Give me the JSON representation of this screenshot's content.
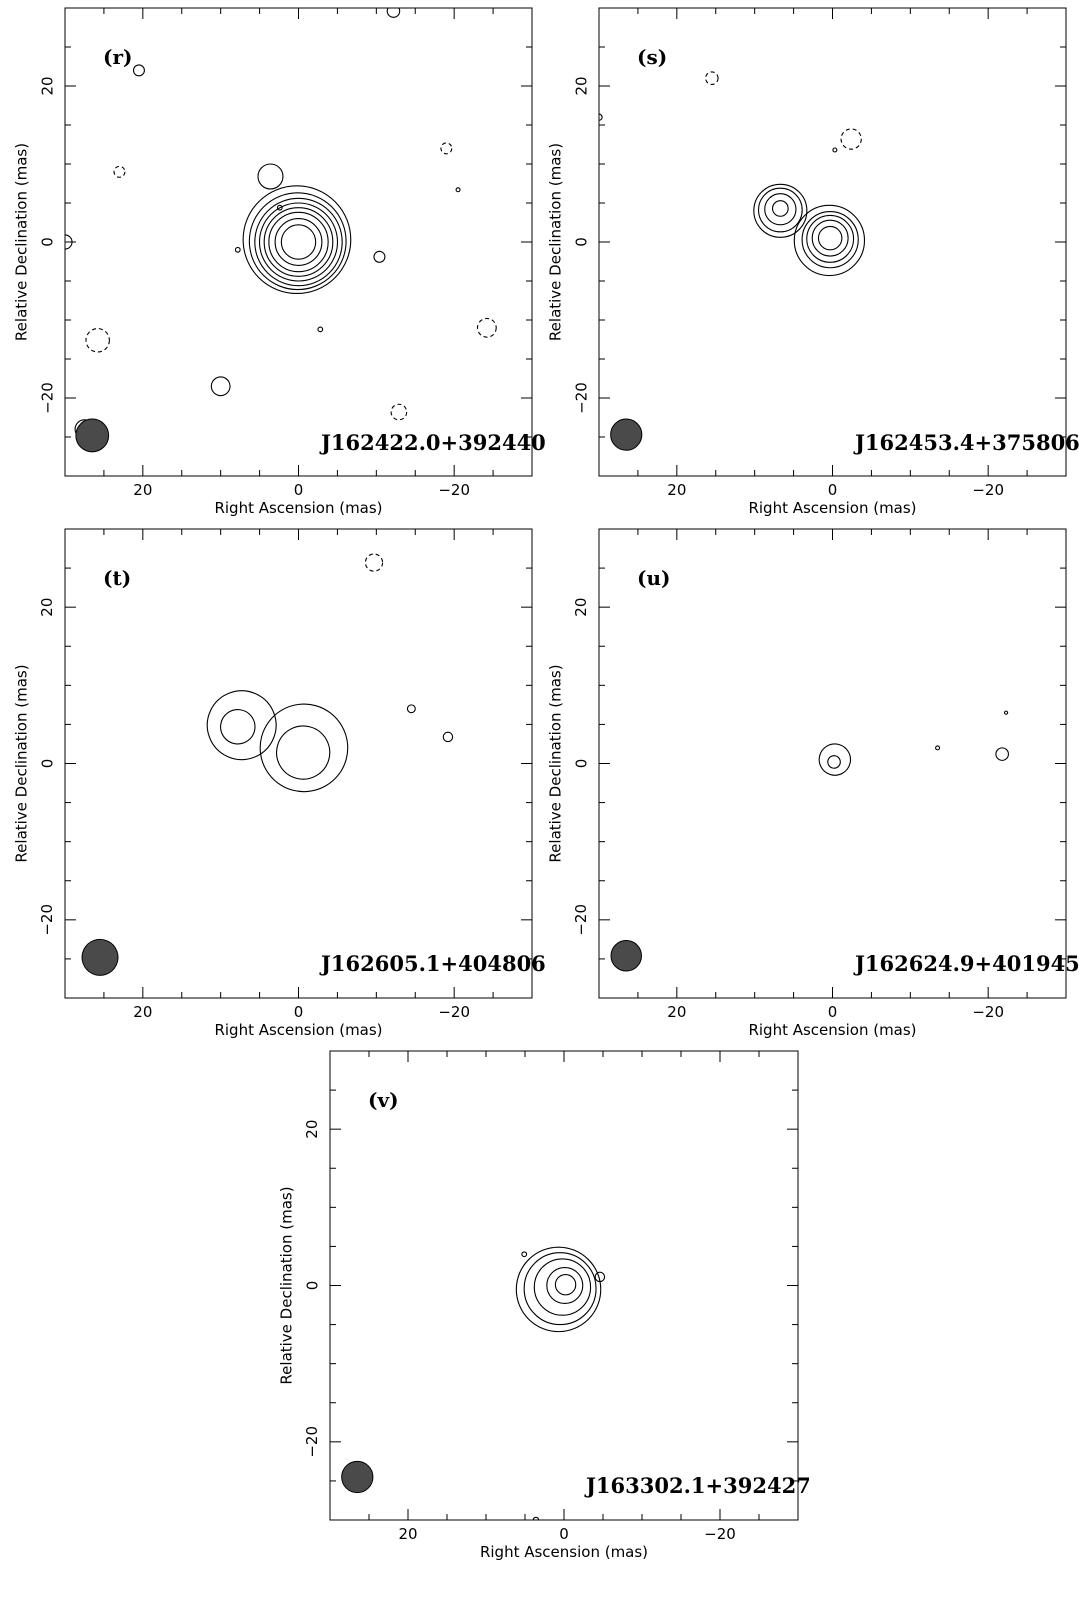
{
  "chart_data": [
    {
      "type": "contour",
      "panel_label": "(r)",
      "source_name": "J162422.0+392440",
      "xlabel": "Right Ascension  (mas)",
      "ylabel": "Relative Declination  (mas)",
      "xlim": [
        30,
        -30
      ],
      "ylim": [
        -30,
        30
      ],
      "x_ticks": [
        "20",
        "0",
        "−20"
      ],
      "y_ticks": [
        "20",
        "0",
        "−20"
      ],
      "contours": [
        {
          "x": 0,
          "y": 0,
          "rx": 1.0,
          "ry": 2.2
        },
        {
          "x": 0,
          "y": 0,
          "rx": 1.3,
          "ry": 3.0
        },
        {
          "x": 0,
          "y": 0,
          "rx": 1.6,
          "ry": 3.8
        },
        {
          "x": 0,
          "y": 0,
          "rx": 1.8,
          "ry": 4.4
        },
        {
          "x": 0,
          "y": 0,
          "rx": 2.0,
          "ry": 5.0
        },
        {
          "x": 0,
          "y": 0,
          "rx": 2.2,
          "ry": 5.6
        },
        {
          "x": 0.1,
          "y": 0.1,
          "rx": 2.4,
          "ry": 6.2
        },
        {
          "x": 0.2,
          "y": 0.3,
          "rx": 2.6,
          "ry": 6.9
        }
      ],
      "components": [
        {
          "x": 3.6,
          "y": 8.4,
          "rx": 0.45,
          "ry": 1.6
        },
        {
          "x": 10,
          "y": -18.5,
          "rx": 0.5,
          "ry": 1.2
        },
        {
          "x": 20.5,
          "y": 22,
          "rx": 0.22,
          "ry": 0.7
        },
        {
          "x": -10.4,
          "y": -1.9,
          "rx": 0.18,
          "ry": 0.7
        },
        {
          "x": 27.5,
          "y": -24,
          "rx": 0.45,
          "ry": 1.2
        },
        {
          "x": 30,
          "y": 0,
          "rx": 0.6,
          "ry": 0.9
        },
        {
          "x": 7.8,
          "y": -1,
          "rx": 0.15,
          "ry": 0.3
        },
        {
          "x": 2.4,
          "y": 4.4,
          "rx": 0.15,
          "ry": 0.3
        },
        {
          "x": -20.5,
          "y": 6.7,
          "rx": 0.1,
          "ry": 0.25
        },
        {
          "x": -2.8,
          "y": -11.2,
          "rx": 0.15,
          "ry": 0.3
        },
        {
          "x": -12.2,
          "y": 29.6,
          "rx": 0.5,
          "ry": 0.8
        }
      ],
      "negative_contours": [
        {
          "x": 23,
          "y": 9,
          "rx": 0.35,
          "ry": 0.7
        },
        {
          "x": -19,
          "y": 12,
          "rx": 0.35,
          "ry": 0.7
        },
        {
          "x": 25.8,
          "y": -12.6,
          "rx": 0.55,
          "ry": 1.5
        },
        {
          "x": -24.2,
          "y": -11,
          "rx": 0.45,
          "ry": 1.2
        },
        {
          "x": -12.9,
          "y": -21.8,
          "rx": 0.45,
          "ry": 1.0
        }
      ],
      "beam": {
        "x": 26.5,
        "y": -24.8,
        "major": 4.2,
        "minor": 1.4,
        "pa": 0
      }
    },
    {
      "type": "contour",
      "panel_label": "(s)",
      "source_name": "J162453.4+375806",
      "xlabel": "Right Ascension  (mas)",
      "ylabel": "Relative Declination  (mas)",
      "xlim": [
        30,
        -30
      ],
      "ylim": [
        -30,
        30
      ],
      "x_ticks": [
        "20",
        "0",
        "−20"
      ],
      "y_ticks": [
        "20",
        "0",
        "−20"
      ],
      "contours": [
        {
          "x": 0.3,
          "y": 0.5,
          "rx": 1.4,
          "ry": 1.5
        },
        {
          "x": 0.3,
          "y": 0.5,
          "rx": 2.0,
          "ry": 2.3
        },
        {
          "x": 0.3,
          "y": 0.4,
          "rx": 2.4,
          "ry": 3.0
        },
        {
          "x": 0.3,
          "y": 0.3,
          "rx": 2.7,
          "ry": 3.6
        },
        {
          "x": 0.4,
          "y": 0.2,
          "rx": 3.0,
          "ry": 4.5
        },
        {
          "x": 6.7,
          "y": 4.3,
          "rx": 0.6,
          "ry": 1.0
        },
        {
          "x": 6.7,
          "y": 4.2,
          "rx": 1.0,
          "ry": 2.0
        },
        {
          "x": 6.7,
          "y": 4.1,
          "rx": 1.3,
          "ry": 2.8
        },
        {
          "x": 6.7,
          "y": 4.0,
          "rx": 1.5,
          "ry": 3.4
        }
      ],
      "components": [
        {
          "x": -0.3,
          "y": 11.8,
          "rx": 0.12,
          "ry": 0.25
        },
        {
          "x": 30,
          "y": 16,
          "rx": 0.1,
          "ry": 0.4
        }
      ],
      "negative_contours": [
        {
          "x": 15.5,
          "y": 21,
          "rx": 0.35,
          "ry": 0.8
        },
        {
          "x": -2.4,
          "y": 13.2,
          "rx": 0.4,
          "ry": 1.3
        }
      ],
      "beam": {
        "x": 26.5,
        "y": -24.7,
        "major": 4.0,
        "minor": 1.4,
        "pa": 0
      }
    },
    {
      "type": "contour",
      "panel_label": "(t)",
      "source_name": "J162605.1+404806",
      "xlabel": "Right Ascension  (mas)",
      "ylabel": "Relative Declination  (mas)",
      "xlim": [
        30,
        -30
      ],
      "ylim": [
        -30,
        30
      ],
      "x_ticks": [
        "20",
        "0",
        "−20"
      ],
      "y_ticks": [
        "20",
        "0",
        "−20"
      ],
      "contours": [
        {
          "x": -0.6,
          "y": 1.4,
          "rx": 1.6,
          "ry": 3.4,
          "rot": 15
        },
        {
          "x": -0.7,
          "y": 2.0,
          "rx": 2.9,
          "ry": 5.6,
          "rot": 15
        },
        {
          "x": 7.8,
          "y": 4.7,
          "rx": 1.0,
          "ry": 2.2,
          "rot": 8
        },
        {
          "x": 7.3,
          "y": 4.9,
          "rx": 3.3,
          "ry": 4.4,
          "rot": -20
        }
      ],
      "components": [
        {
          "x": -14.5,
          "y": 7,
          "rx": 0.3,
          "ry": 0.5
        },
        {
          "x": -19.2,
          "y": 3.4,
          "rx": 0.45,
          "ry": 0.6
        }
      ],
      "negative_contours": [
        {
          "x": -9.7,
          "y": 25.7,
          "rx": 1.3,
          "ry": 1.1
        }
      ],
      "beam": {
        "x": 25.5,
        "y": -24.8,
        "major": 4.6,
        "minor": 2.5,
        "pa": 25
      }
    },
    {
      "type": "contour",
      "panel_label": "(u)",
      "source_name": "J162624.9+401945",
      "xlabel": "Right Ascension  (mas)",
      "ylabel": "Relative Declination  (mas)",
      "xlim": [
        30,
        -30
      ],
      "ylim": [
        -30,
        30
      ],
      "x_ticks": [
        "20",
        "0",
        "−20"
      ],
      "y_ticks": [
        "20",
        "0",
        "−20"
      ],
      "contours": [
        {
          "x": -0.2,
          "y": 0.2,
          "rx": 0.35,
          "ry": 0.8,
          "rot": 15
        },
        {
          "x": -0.3,
          "y": 0.5,
          "rx": 0.8,
          "ry": 2.0,
          "rot": 15
        }
      ],
      "components": [
        {
          "x": -13.5,
          "y": 2,
          "rx": 0.12,
          "ry": 0.25
        },
        {
          "x": -21.8,
          "y": 1.2,
          "rx": 0.3,
          "ry": 0.8
        },
        {
          "x": -22.3,
          "y": 6.5,
          "rx": 0.1,
          "ry": 0.2
        }
      ],
      "negative_contours": [],
      "beam": {
        "x": 26.5,
        "y": -24.6,
        "major": 3.9,
        "minor": 1.4,
        "pa": 0
      }
    },
    {
      "type": "contour",
      "panel_label": "(v)",
      "source_name": "J163302.1+392427",
      "xlabel": "Right Ascension  (mas)",
      "ylabel": "Relative Declination  (mas)",
      "xlim": [
        30,
        -30
      ],
      "ylim": [
        -30,
        30
      ],
      "x_ticks": [
        "20",
        "0",
        "−20"
      ],
      "y_ticks": [
        "20",
        "0",
        "−20"
      ],
      "contours": [
        {
          "x": -0.2,
          "y": 0.1,
          "rx": 0.6,
          "ry": 1.3
        },
        {
          "x": -0.1,
          "y": 0.0,
          "rx": 1.1,
          "ry": 2.3
        },
        {
          "x": 0.2,
          "y": -0.2,
          "rx": 1.6,
          "ry": 3.6
        },
        {
          "x": 0.5,
          "y": -0.4,
          "rx": 2.0,
          "ry": 4.6
        },
        {
          "x": 0.7,
          "y": -0.5,
          "rx": 2.4,
          "ry": 5.4
        }
      ],
      "components": [
        {
          "x": 5.1,
          "y": 4,
          "rx": 0.12,
          "ry": 0.3
        },
        {
          "x": -4.6,
          "y": 1.1,
          "rx": 0.25,
          "ry": 0.6
        },
        {
          "x": 3.6,
          "y": -30,
          "rx": 0.35,
          "ry": 0.35
        }
      ],
      "negative_contours": [],
      "beam": {
        "x": 26.5,
        "y": -24.5,
        "major": 4.0,
        "minor": 1.5,
        "pa": 0
      }
    }
  ]
}
